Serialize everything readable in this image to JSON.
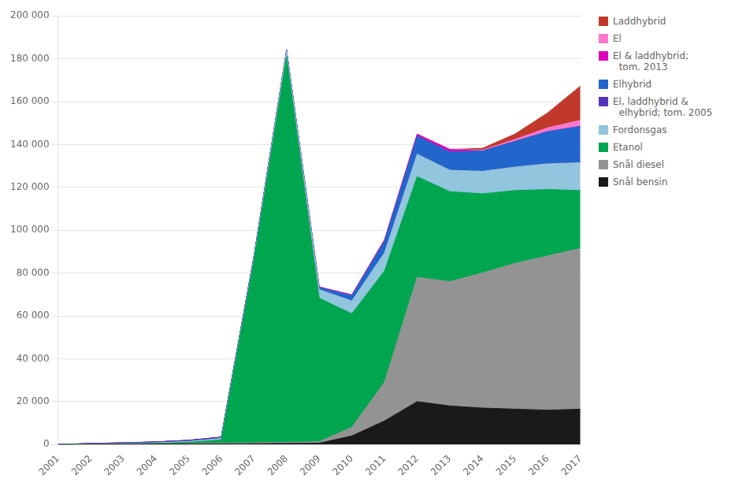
{
  "chart_data": {
    "type": "area",
    "stacked": true,
    "x": [
      2001,
      2002,
      2003,
      2004,
      2005,
      2006,
      2007,
      2008,
      2009,
      2010,
      2011,
      2012,
      2013,
      2014,
      2015,
      2016,
      2017
    ],
    "xlim": [
      2001,
      2017
    ],
    "xticks": [
      2001,
      2002,
      2003,
      2004,
      2005,
      2006,
      2007,
      2008,
      2009,
      2010,
      2011,
      2012,
      2013,
      2014,
      2015,
      2016,
      2017
    ],
    "ylim": [
      0,
      200000
    ],
    "yticks": [
      0,
      {
        "value": 20000,
        "label": "20 000"
      },
      {
        "value": 40000,
        "label": "40 000"
      },
      {
        "value": 60000,
        "label": "60 000"
      },
      {
        "value": 80000,
        "label": "80 000"
      },
      {
        "value": 100000,
        "label": "100 000"
      },
      {
        "value": 120000,
        "label": "120 000"
      },
      {
        "value": 140000,
        "label": "140 000"
      },
      {
        "value": 160000,
        "label": "160 000"
      },
      {
        "value": 180000,
        "label": "180 000"
      },
      {
        "value": 200000,
        "label": "200 000"
      }
    ],
    "grid": "y",
    "legend": "right",
    "series": [
      {
        "name": "Snål bensin",
        "color": "#1a1a1a",
        "values": [
          0,
          100,
          150,
          200,
          250,
          300,
          400,
          500,
          600,
          4000,
          11000,
          20000,
          18000,
          17000,
          16500,
          16000,
          16500
        ]
      },
      {
        "name": "Snål diesel",
        "color": "#939393",
        "values": [
          0,
          50,
          100,
          150,
          200,
          300,
          400,
          500,
          700,
          4000,
          18000,
          58000,
          58000,
          63000,
          68000,
          72000,
          75000
        ]
      },
      {
        "name": "Etanol",
        "color": "#00A550",
        "values": [
          0,
          50,
          100,
          200,
          600,
          1500,
          85000,
          180000,
          67000,
          53000,
          52000,
          47000,
          42000,
          37000,
          34000,
          31000,
          27000
        ]
      },
      {
        "name": "Fordonsgas",
        "color": "#92C5DE",
        "values": [
          0,
          80,
          150,
          250,
          400,
          700,
          1200,
          2500,
          4000,
          6000,
          8500,
          10500,
          10000,
          10500,
          11000,
          12000,
          13000
        ]
      },
      {
        "name": "El, laddhybrid &\n  elhybrid; tom. 2005",
        "color": "#5533BB",
        "values": [
          0,
          200,
          300,
          400,
          500,
          600,
          700,
          0,
          0,
          0,
          0,
          0,
          0,
          0,
          0,
          0,
          0
        ]
      },
      {
        "name": "Elhybrid",
        "color": "#2266CC",
        "values": [
          0,
          0,
          0,
          0,
          0,
          0,
          0,
          500,
          1000,
          2500,
          5500,
          8500,
          8500,
          9500,
          12000,
          15000,
          17000
        ]
      },
      {
        "name": "El & laddhybrid;\n  tom. 2013",
        "color": "#DD00BB",
        "values": [
          0,
          0,
          0,
          0,
          0,
          0,
          0,
          100,
          200,
          300,
          500,
          800,
          1200,
          0,
          0,
          0,
          0
        ]
      },
      {
        "name": "El",
        "color": "#FF77CC",
        "values": [
          0,
          0,
          0,
          0,
          0,
          0,
          0,
          0,
          0,
          0,
          0,
          0,
          0,
          400,
          900,
          1800,
          2800
        ]
      },
      {
        "name": "Laddhybrid",
        "color": "#C0392B",
        "values": [
          0,
          0,
          0,
          0,
          0,
          0,
          0,
          0,
          0,
          0,
          0,
          0,
          0,
          800,
          2500,
          7000,
          16000
        ]
      }
    ]
  }
}
